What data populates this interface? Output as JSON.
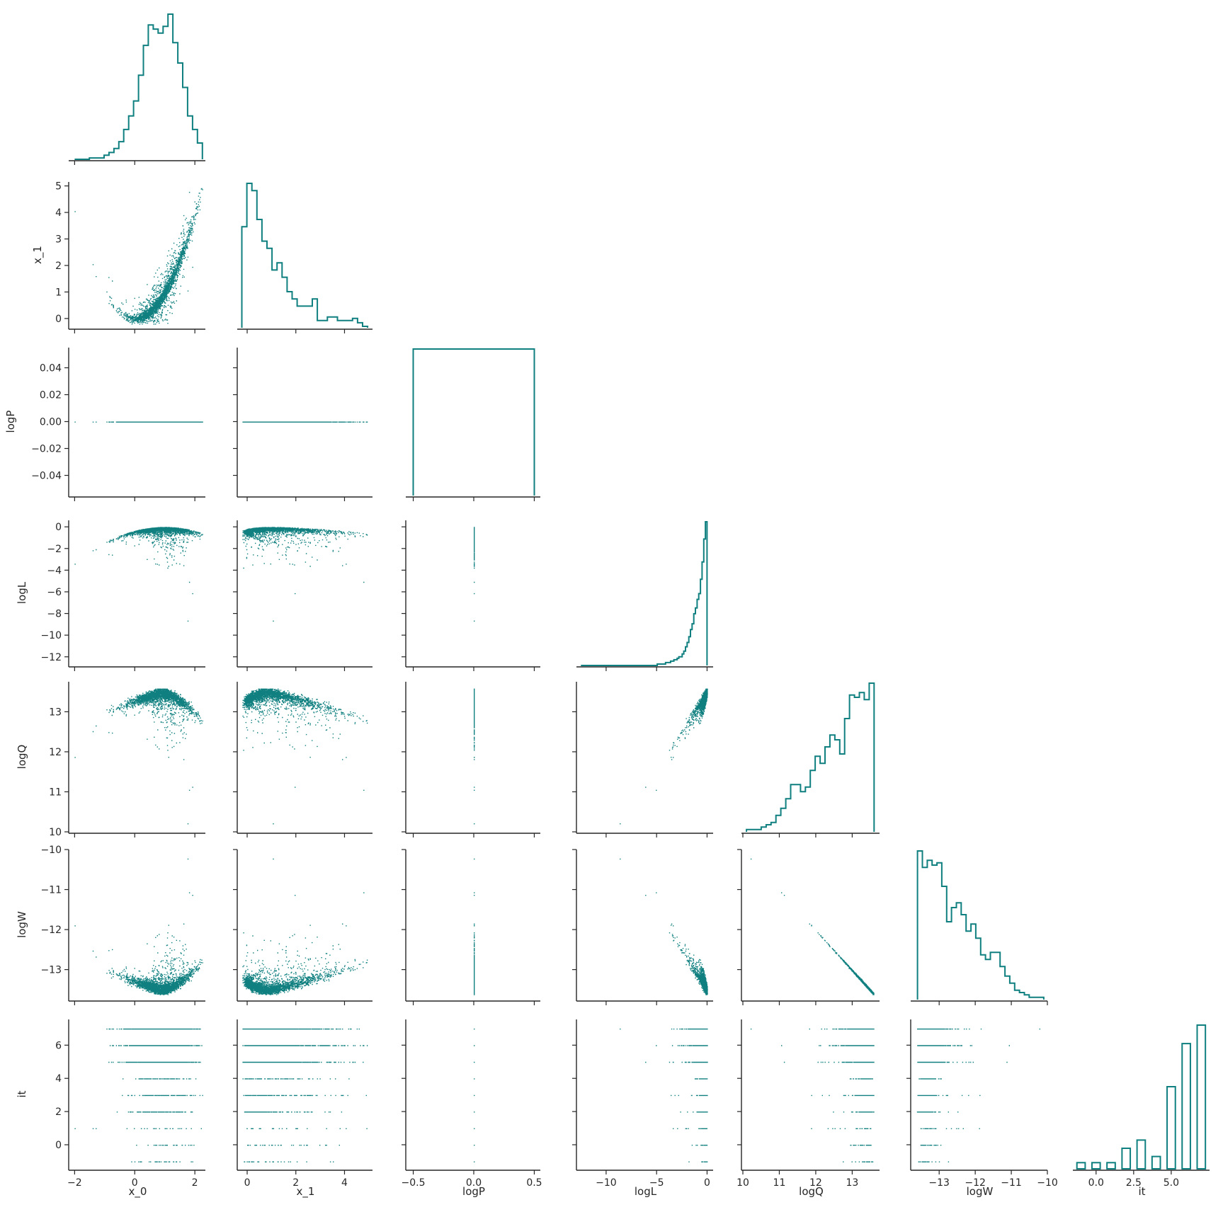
{
  "chart_data": {
    "type": "scatter",
    "variables": [
      "x_0",
      "x_1",
      "logP",
      "logL",
      "logQ",
      "logW",
      "it"
    ],
    "style": {
      "series_color": "#0f7f7f",
      "axis_color": "#262626",
      "grid": false,
      "layout": "lower-triangle pair plot"
    },
    "axes": {
      "x_0": {
        "label": "x_0",
        "range": [
          -2.15,
          2.35
        ],
        "ticks": [
          -2,
          0,
          2
        ],
        "tick_labels": [
          "−2",
          "0",
          "2"
        ]
      },
      "x_1": {
        "label": "x_1",
        "range": [
          -0.35,
          5.15
        ],
        "ticks": [
          0,
          1,
          2,
          3,
          4,
          5
        ],
        "tick_labels": [
          "0",
          "1",
          "2",
          "3",
          "4",
          "5"
        ]
      },
      "x_1_x": {
        "ticks": [
          0,
          2,
          4
        ],
        "tick_labels": [
          "0",
          "2",
          "4"
        ]
      },
      "logP": {
        "label": "logP",
        "range": [
          -0.055,
          0.055
        ],
        "ticks": [
          -0.04,
          -0.02,
          0.0,
          0.02,
          0.04
        ],
        "tick_labels": [
          "−0.04",
          "−0.02",
          "0.00",
          "0.02",
          "0.04"
        ]
      },
      "logP_x": {
        "range": [
          -0.55,
          0.55
        ],
        "ticks": [
          -0.5,
          0,
          0.5
        ],
        "tick_labels": [
          "−0.5",
          "0.0",
          "0.5"
        ]
      },
      "logL": {
        "label": "logL",
        "range": [
          -12.8,
          0.6
        ],
        "ticks": [
          -12,
          -10,
          -8,
          -6,
          -4,
          -2,
          0
        ],
        "tick_labels": [
          "−12",
          "−10",
          "−8",
          "−6",
          "−4",
          "−2",
          "0"
        ]
      },
      "logL_x": {
        "ticks": [
          -10,
          -5,
          0
        ],
        "tick_labels": [
          "−10",
          "−5",
          "0"
        ]
      },
      "logQ": {
        "label": "logQ",
        "range": [
          10.0,
          13.75
        ],
        "ticks": [
          10,
          11,
          12,
          13
        ],
        "tick_labels": [
          "10",
          "11",
          "12",
          "13"
        ]
      },
      "logW": {
        "label": "logW",
        "range": [
          -13.75,
          -10.0
        ],
        "ticks": [
          -13,
          -12,
          -11,
          -10
        ],
        "tick_labels": [
          "−13",
          "−12",
          "−11",
          "−10"
        ]
      },
      "it": {
        "label": "it",
        "range": [
          -1.45,
          7.55
        ],
        "ticks": [
          0,
          2,
          4,
          6
        ],
        "tick_labels": [
          "0",
          "2",
          "4",
          "6"
        ]
      },
      "it_x": {
        "ticks": [
          0,
          2.5,
          5
        ],
        "tick_labels": [
          "0.0",
          "2.5",
          "5.0"
        ]
      }
    },
    "histograms": {
      "x_0": {
        "edges": [
          -2.0,
          2.25
        ],
        "counts": [
          0,
          0,
          0,
          1,
          1,
          1,
          3,
          5,
          8,
          13,
          22,
          32,
          43,
          62,
          84,
          99,
          96,
          93,
          98,
          107,
          86,
          71,
          53,
          32,
          22,
          12
        ]
      },
      "x_1": {
        "edges": [
          -0.22,
          4.95
        ],
        "counts": [
          14,
          20,
          19,
          15,
          12,
          11,
          8,
          9,
          7,
          5,
          4,
          3,
          3,
          3,
          4,
          1,
          1,
          1.5,
          1.5,
          1,
          1,
          1,
          1.3,
          0.7,
          0.2
        ]
      },
      "logP": {
        "edges": [
          -0.5,
          0.5
        ],
        "counts": [
          1
        ]
      },
      "logL": {
        "edges": [
          -12.5,
          0.0
        ],
        "counts": [
          0,
          0,
          0,
          0,
          0,
          0,
          0,
          0,
          0,
          0,
          0,
          0,
          0,
          0,
          0,
          0,
          0,
          0,
          0,
          0,
          0,
          0,
          0,
          0,
          0,
          0,
          0,
          0,
          0,
          0,
          0,
          0,
          0,
          0,
          0,
          0,
          0,
          0,
          0,
          0,
          0,
          0,
          0,
          0,
          0,
          0,
          1,
          1,
          1,
          1,
          1,
          2,
          2,
          2,
          3,
          3,
          4,
          4,
          5,
          6,
          6,
          8,
          10,
          13,
          16,
          20,
          25,
          29,
          36,
          40,
          46,
          50,
          60,
          72,
          88,
          100
        ]
      },
      "logQ": {
        "edges": [
          10.1,
          13.6
        ],
        "counts": [
          1,
          1,
          1,
          2,
          3,
          4,
          7,
          10,
          14,
          20,
          20,
          17,
          19,
          26,
          32,
          29,
          36,
          41,
          39,
          33,
          48,
          58,
          57,
          59,
          56,
          63
        ]
      },
      "logW": {
        "edges": [
          -13.6,
          -10.1
        ],
        "counts": [
          63,
          56,
          59,
          57,
          58,
          48,
          33,
          39,
          41,
          36,
          29,
          32,
          26,
          19,
          17,
          20,
          20,
          14,
          10,
          7,
          4,
          3,
          2,
          1,
          1,
          1
        ]
      },
      "it": {
        "bins": [
          [
            -1,
            0.3
          ],
          [
            0,
            0.3
          ],
          [
            1,
            0.3
          ],
          [
            2,
            1.0
          ],
          [
            3,
            1.4
          ],
          [
            4,
            0.6
          ],
          [
            5,
            4.0
          ],
          [
            6,
            6.1
          ],
          [
            7,
            7.0
          ]
        ],
        "bar_width": 0.55
      }
    }
  }
}
